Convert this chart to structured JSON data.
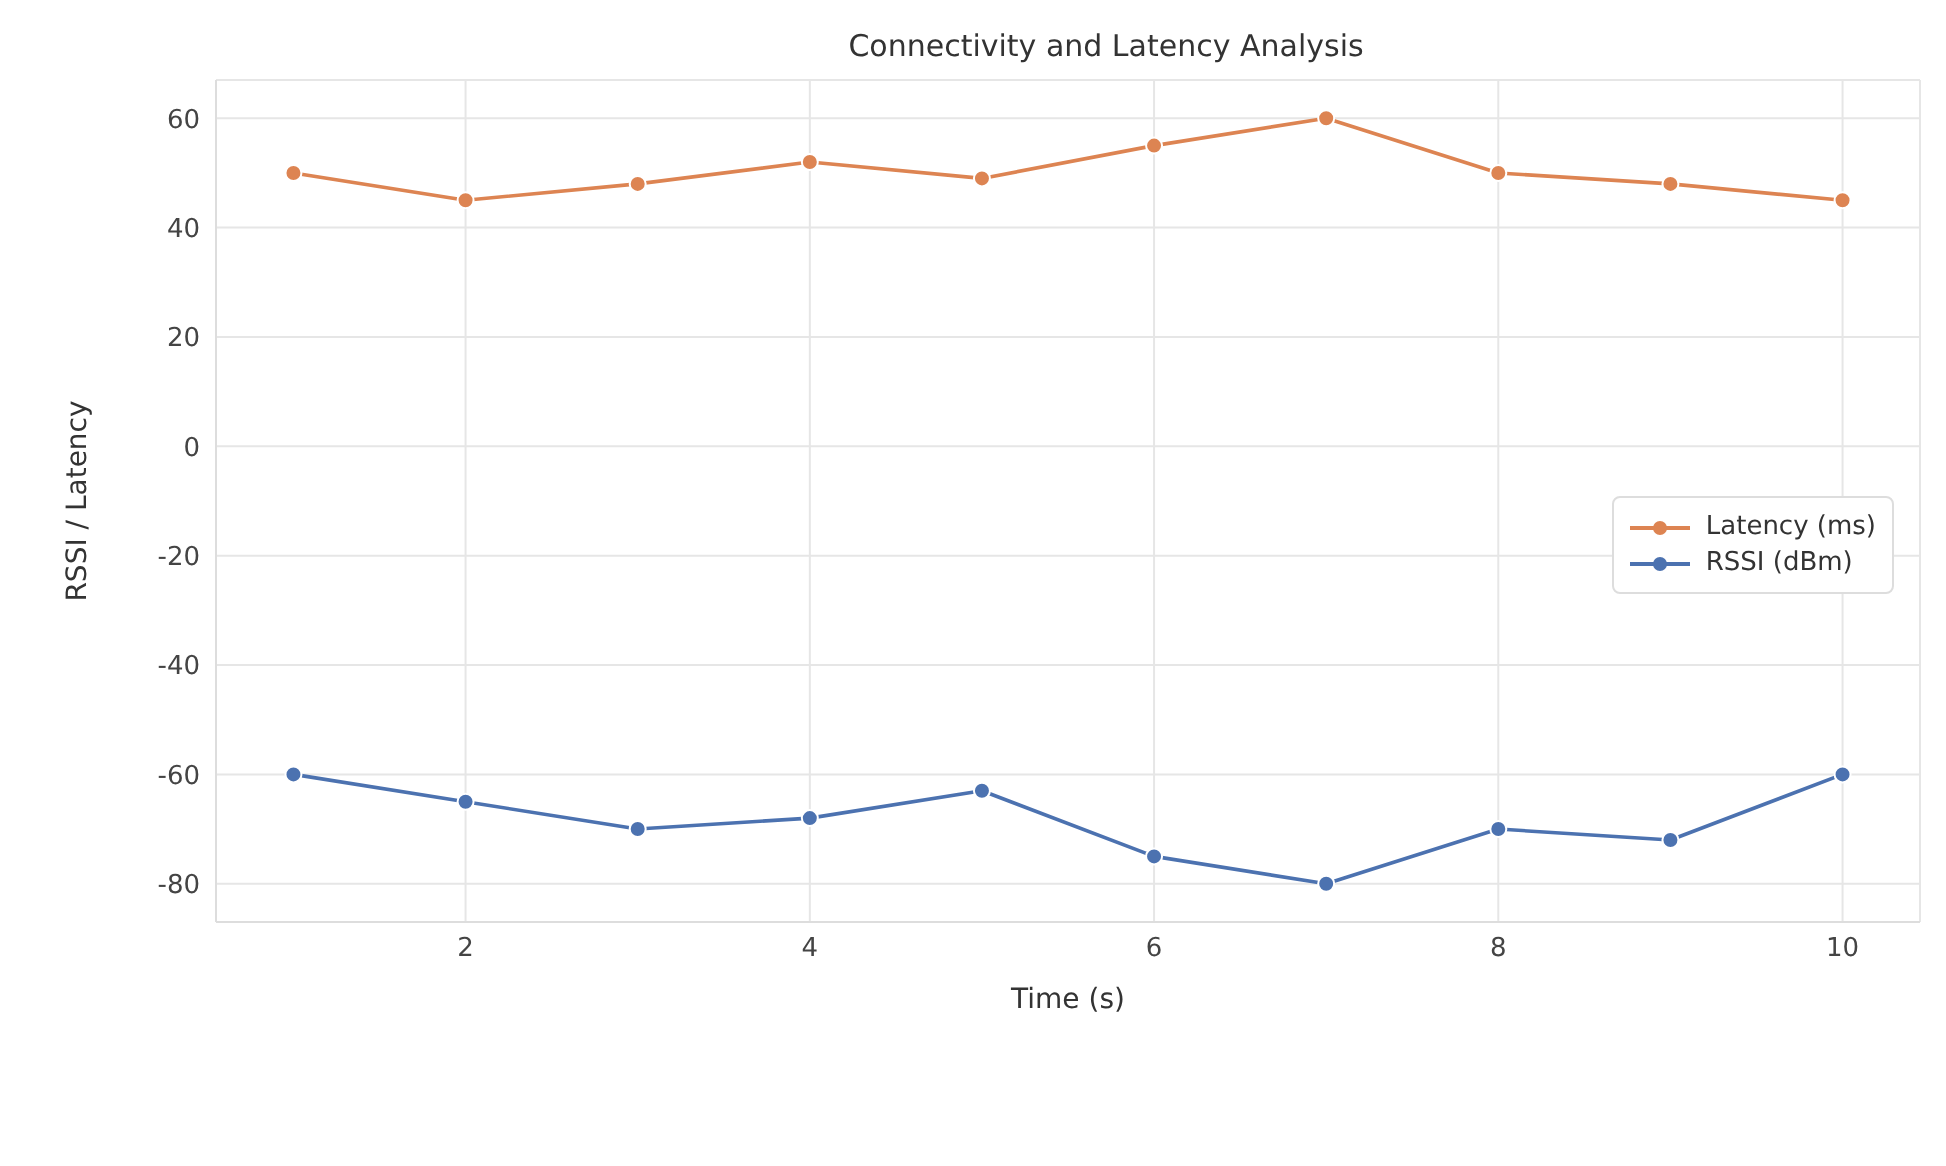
{
  "chart_data": {
    "type": "line",
    "title": "Connectivity and Latency Analysis",
    "xlabel": "Time (s)",
    "ylabel": "RSSI / Latency",
    "x": [
      1,
      2,
      3,
      4,
      5,
      6,
      7,
      8,
      9,
      10
    ],
    "series": [
      {
        "name": "RSSI (dBm)",
        "color": "#4c72b0",
        "values": [
          -60,
          -65,
          -70,
          -68,
          -63,
          -75,
          -80,
          -70,
          -72,
          -60
        ]
      },
      {
        "name": "Latency (ms)",
        "color": "#dd8452",
        "values": [
          50,
          45,
          48,
          52,
          49,
          55,
          60,
          50,
          48,
          45
        ]
      }
    ],
    "xlim": [
      0.55,
      10.45
    ],
    "xticks": [
      2,
      4,
      6,
      8,
      10
    ],
    "ylim": [
      -87,
      67
    ],
    "yticks": [
      -80,
      -60,
      -40,
      -20,
      0,
      20,
      40,
      60
    ],
    "grid": true,
    "legend": "right",
    "marker": "circle",
    "line_style": "solid"
  }
}
